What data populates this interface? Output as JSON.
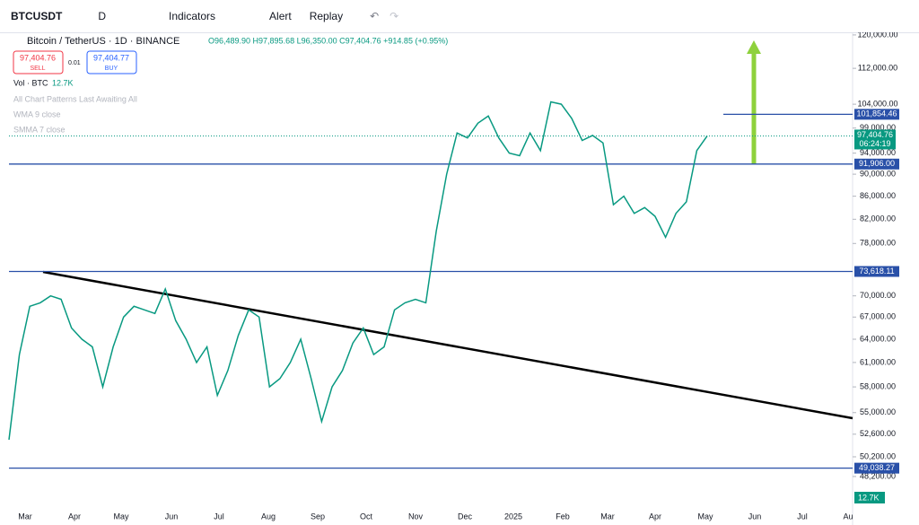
{
  "toolbar": {
    "symbol": "BTCUSDT",
    "interval": "D",
    "indicators": "Indicators",
    "alert": "Alert",
    "replay": "Replay"
  },
  "legend": {
    "title": "Bitcoin / TetherUS · 1D · BINANCE",
    "ohlc": "O96,489.90 H97,895.68 L96,350.00 C97,404.76 +914.85 (+0.95%)",
    "sell_price": "97,404.76",
    "sell": "SELL",
    "spread": "0.01",
    "buy_price": "97,404.77",
    "buy": "BUY",
    "volume": "Vol · BTC",
    "volume_value": "12.7K",
    "indicators": [
      "All Chart Patterns Last Awaiting All",
      "WMA 9 close",
      "SMMA 7 close"
    ]
  },
  "chart_data": {
    "type": "line",
    "log": true,
    "color": "#089981",
    "ylim": [
      45000,
      122000
    ],
    "yticks": [
      {
        "value": 120000,
        "label": "120,000.00"
      },
      {
        "value": 112000,
        "label": "112,000.00"
      },
      {
        "value": 104000,
        "label": "104,000.00"
      },
      {
        "value": 99000,
        "label": "99,000.00"
      },
      {
        "value": 94000,
        "label": "94,000.00"
      },
      {
        "value": 90000,
        "label": "90,000.00"
      },
      {
        "value": 86000,
        "label": "86,000.00"
      },
      {
        "value": 82000,
        "label": "82,000.00"
      },
      {
        "value": 78000,
        "label": "78,000.00"
      },
      {
        "value": 70000,
        "label": "70,000.00"
      },
      {
        "value": 67000,
        "label": "67,000.00"
      },
      {
        "value": 64000,
        "label": "64,000.00"
      },
      {
        "value": 61000,
        "label": "61,000.00"
      },
      {
        "value": 58000,
        "label": "58,000.00"
      },
      {
        "value": 55000,
        "label": "55,000.00"
      },
      {
        "value": 52600,
        "label": "52,600.00"
      },
      {
        "value": 50200,
        "label": "50,200.00"
      },
      {
        "value": 48200,
        "label": "48,200.00"
      }
    ],
    "xticks": [
      "Mar",
      "Apr",
      "May",
      "Jun",
      "Jul",
      "Aug",
      "Sep",
      "Oct",
      "Nov",
      "Dec",
      "2025",
      "Feb",
      "Mar",
      "Apr",
      "May",
      "Jun",
      "Jul",
      "Au"
    ],
    "values": [
      52000,
      62000,
      68500,
      69000,
      70000,
      69500,
      65500,
      64000,
      63000,
      58000,
      63000,
      67000,
      68500,
      68000,
      67500,
      71000,
      66500,
      64000,
      61000,
      63000,
      57000,
      60000,
      64500,
      68000,
      67000,
      58000,
      59000,
      61000,
      64000,
      59000,
      54000,
      58000,
      60000,
      63500,
      65500,
      62000,
      63000,
      68000,
      69000,
      69500,
      69000,
      80000,
      90000,
      98000,
      97000,
      100000,
      101500,
      97000,
      94000,
      93500,
      98000,
      94500,
      104500,
      104000,
      101000,
      96500,
      97500,
      96000,
      84500,
      86000,
      83000,
      84000,
      82500,
      79000,
      83000,
      85000,
      94500,
      97404.76
    ],
    "price_lines": [
      {
        "value": 101854.46,
        "label": "101,854.46"
      },
      {
        "value": 91906,
        "label": "91,906.00"
      },
      {
        "value": 73618.11,
        "label": "73,618.11"
      },
      {
        "value": 49038.27,
        "label": "49,038.27"
      }
    ],
    "current": {
      "value": 97404.76,
      "label": "97,404.76",
      "countdown": "06:24:19"
    }
  }
}
